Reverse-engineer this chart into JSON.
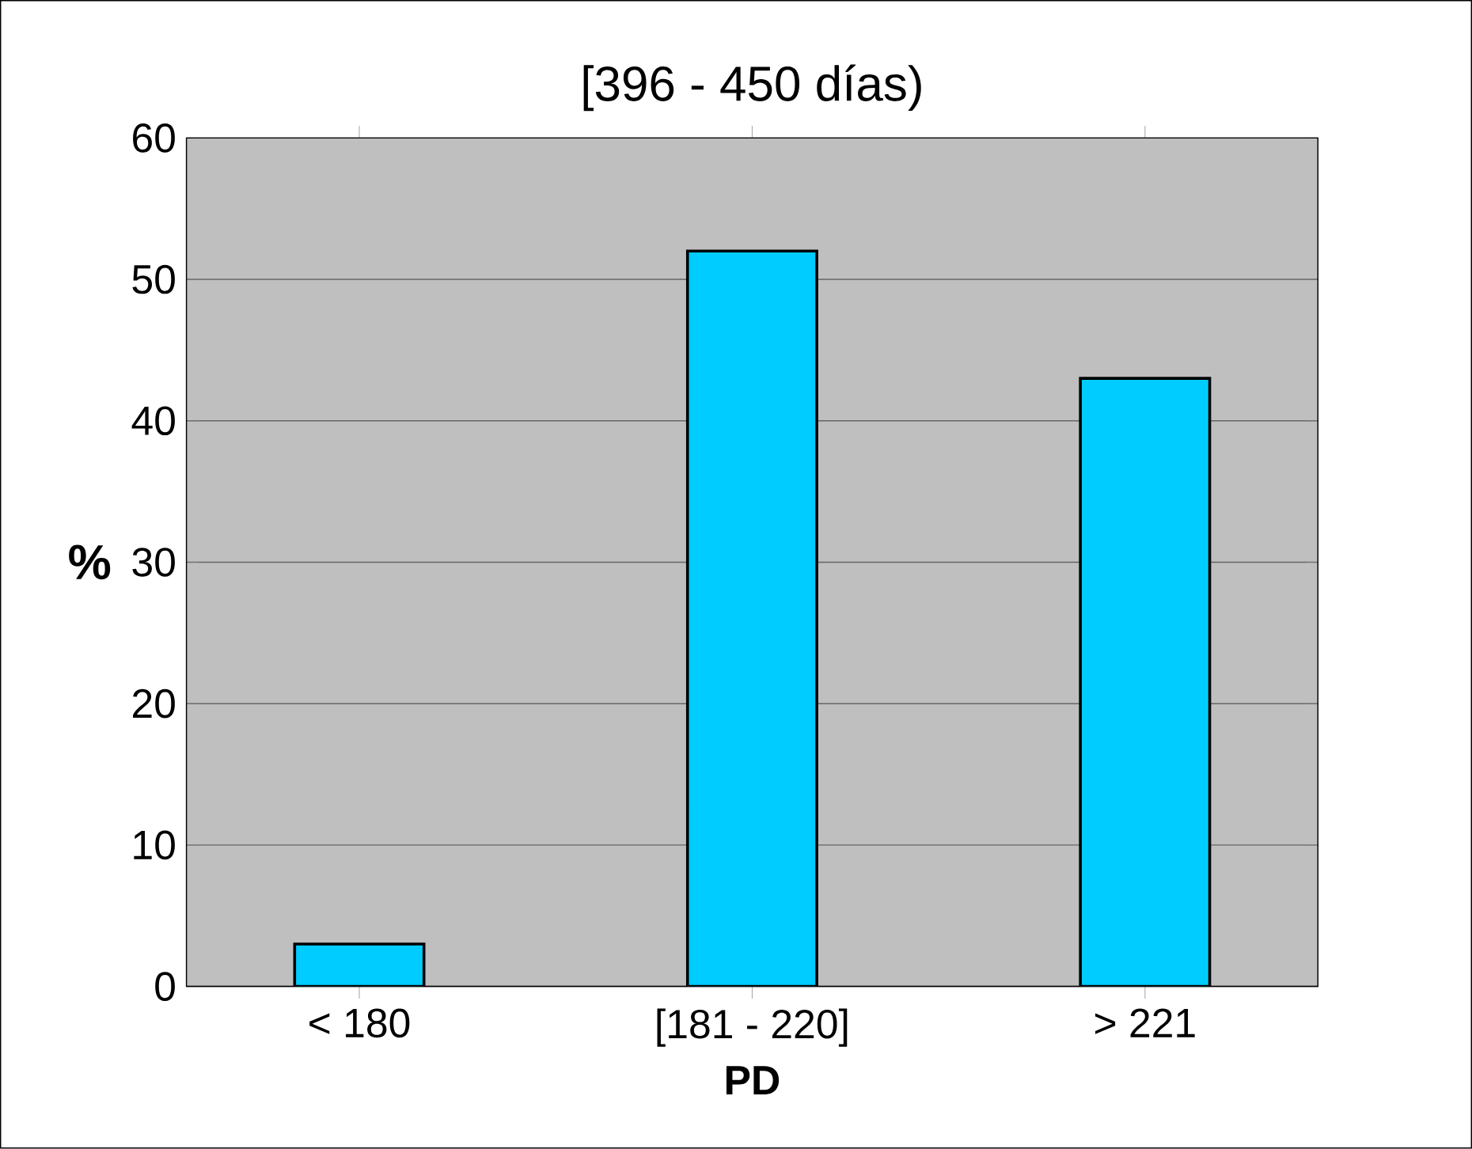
{
  "chart_data": {
    "type": "bar",
    "title": "[396 - 450 días)",
    "xlabel": "PD",
    "ylabel": "%",
    "categories": [
      "< 180",
      "[181 - 220]",
      "> 221"
    ],
    "values": [
      3,
      52,
      43
    ],
    "color": "#00ccff",
    "ylim": [
      0,
      60
    ],
    "yticks": [
      0,
      10,
      20,
      30,
      40,
      50,
      60
    ],
    "grid": "y"
  }
}
